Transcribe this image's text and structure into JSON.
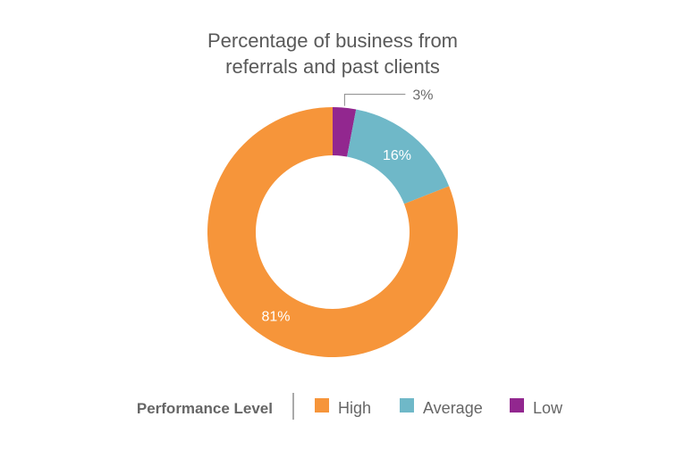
{
  "chart_data": {
    "type": "donut",
    "title_lines": [
      "Percentage of business from",
      "referrals and past clients"
    ],
    "series": [
      {
        "name": "Low",
        "value": 3,
        "label": "3%",
        "color": "#92278F"
      },
      {
        "name": "Average",
        "value": 16,
        "label": "16%",
        "color": "#6FB8C8"
      },
      {
        "name": "High",
        "value": 81,
        "label": "81%",
        "color": "#F6953A"
      }
    ],
    "legend": {
      "title": "Performance Level",
      "placement": "bottom",
      "items": [
        {
          "name": "High",
          "color": "#F6953A"
        },
        {
          "name": "Average",
          "color": "#6FB8C8"
        },
        {
          "name": "Low",
          "color": "#92278F"
        }
      ]
    }
  }
}
